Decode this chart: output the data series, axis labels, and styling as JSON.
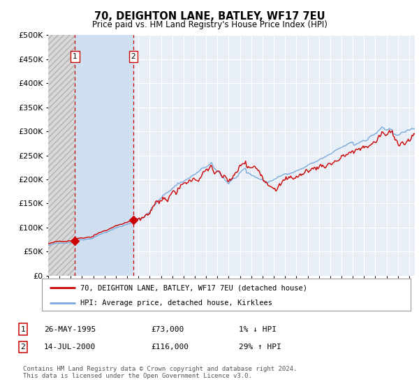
{
  "title": "70, DEIGHTON LANE, BATLEY, WF17 7EU",
  "subtitle": "Price paid vs. HM Land Registry's House Price Index (HPI)",
  "legend_label_red": "70, DEIGHTON LANE, BATLEY, WF17 7EU (detached house)",
  "legend_label_blue": "HPI: Average price, detached house, Kirklees",
  "sale1_date": "26-MAY-1995",
  "sale1_price": 73000,
  "sale1_hpi_pct": "1% ↓ HPI",
  "sale2_date": "14-JUL-2000",
  "sale2_price": 116000,
  "sale2_hpi_pct": "29% ↑ HPI",
  "footer": "Contains HM Land Registry data © Crown copyright and database right 2024.\nThis data is licensed under the Open Government Licence v3.0.",
  "ylim": [
    0,
    500000
  ],
  "yticks": [
    0,
    50000,
    100000,
    150000,
    200000,
    250000,
    300000,
    350000,
    400000,
    450000,
    500000
  ],
  "background_color": "#ffffff",
  "plot_bg_color": "#e8eef5",
  "grid_color": "#ffffff",
  "red_line_color": "#cc0000",
  "blue_line_color": "#7aaadd",
  "sale1_x": 1995.38,
  "sale2_x": 2000.54,
  "xmin": 1993.0,
  "xmax": 2025.5
}
